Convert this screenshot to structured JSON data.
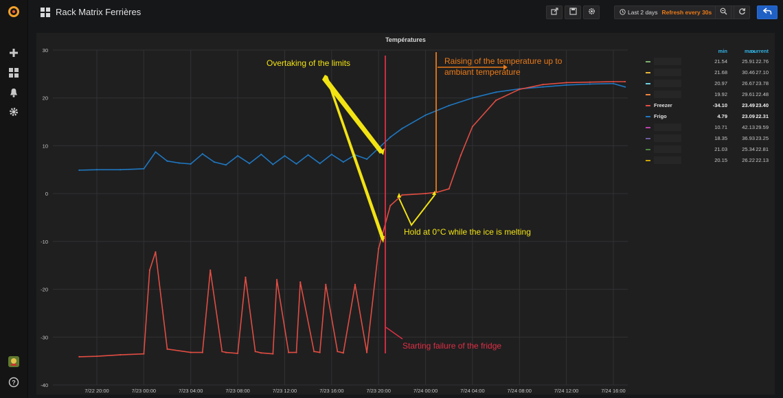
{
  "header": {
    "title": "Rack Matrix Ferrières"
  },
  "timepicker": {
    "range": "Last 2 days",
    "refresh": "Refresh every 30s"
  },
  "panel": {
    "title": "Températures"
  },
  "chart_data": {
    "type": "line",
    "title": "Températures",
    "xlabel": "",
    "ylabel": "",
    "ylim": [
      -40,
      30
    ],
    "y_ticks": [
      "30",
      "20",
      "10",
      "0",
      "-10",
      "-20",
      "-30",
      "-40"
    ],
    "x_ticks": [
      "7/22 20:00",
      "7/23 00:00",
      "7/23 04:00",
      "7/23 08:00",
      "7/23 12:00",
      "7/23 16:00",
      "7/23 20:00",
      "7/24 00:00",
      "7/24 04:00",
      "7/24 08:00",
      "7/24 12:00",
      "7/24 16:00"
    ],
    "grid": true,
    "legend_position": "right",
    "series": [
      {
        "name": "Frigo",
        "color": "#1f78c1",
        "x": [
          "7/22 18:30",
          "7/22 20:00",
          "7/22 22:00",
          "7/23 00:00",
          "7/23 01:00",
          "7/23 02:00",
          "7/23 03:00",
          "7/23 04:00",
          "7/23 05:00",
          "7/23 06:00",
          "7/23 07:00",
          "7/23 08:00",
          "7/23 09:00",
          "7/23 10:00",
          "7/23 11:00",
          "7/23 12:00",
          "7/23 13:00",
          "7/23 14:00",
          "7/23 15:00",
          "7/23 16:00",
          "7/23 17:00",
          "7/23 18:00",
          "7/23 19:00",
          "7/23 20:00",
          "7/23 21:00",
          "7/23 22:00",
          "7/24 00:00",
          "7/24 02:00",
          "7/24 04:00",
          "7/24 06:00",
          "7/24 08:00",
          "7/24 10:00",
          "7/24 12:00",
          "7/24 14:00",
          "7/24 16:00",
          "7/24 17:00"
        ],
        "y": [
          4.9,
          5.0,
          5.0,
          5.2,
          8.7,
          6.8,
          6.4,
          6.2,
          8.3,
          6.6,
          6.0,
          7.9,
          6.3,
          8.2,
          6.1,
          7.9,
          6.2,
          8.1,
          6.3,
          8.2,
          6.6,
          8.1,
          7.2,
          9.5,
          11.8,
          13.6,
          16.4,
          18.4,
          20.0,
          21.2,
          21.9,
          22.3,
          22.7,
          22.9,
          23.0,
          22.3
        ]
      },
      {
        "name": "Freezer",
        "color": "#e24d42",
        "x": [
          "7/22 18:30",
          "7/22 20:00",
          "7/22 22:00",
          "7/23 00:00",
          "7/23 00:30",
          "7/23 01:00",
          "7/23 02:00",
          "7/23 04:00",
          "7/23 05:00",
          "7/23 05:40",
          "7/23 06:40",
          "7/23 07:00",
          "7/23 08:00",
          "7/23 08:40",
          "7/23 09:30",
          "7/23 10:00",
          "7/23 11:00",
          "7/23 11:20",
          "7/23 12:20",
          "7/23 13:00",
          "7/23 13:20",
          "7/23 14:30",
          "7/23 15:00",
          "7/23 15:30",
          "7/23 16:30",
          "7/23 17:00",
          "7/23 18:00",
          "7/23 19:00",
          "7/23 20:00",
          "7/23 21:00",
          "7/23 22:00",
          "7/24 00:00",
          "7/24 01:00",
          "7/24 02:00",
          "7/24 03:00",
          "7/24 04:00",
          "7/24 06:00",
          "7/24 08:00",
          "7/24 10:00",
          "7/24 12:00",
          "7/24 14:00",
          "7/24 16:00",
          "7/24 17:00"
        ],
        "y": [
          -34.1,
          -34.0,
          -33.7,
          -33.5,
          -16.0,
          -12.2,
          -32.5,
          -33.2,
          -33.2,
          -16.0,
          -33.0,
          -33.2,
          -33.4,
          -17.5,
          -33.0,
          -33.3,
          -33.5,
          -18.0,
          -33.2,
          -33.2,
          -18.5,
          -33.0,
          -33.2,
          -19.0,
          -33.0,
          -33.3,
          -19.0,
          -33.2,
          -11.5,
          -2.5,
          -0.3,
          0.0,
          0.3,
          1.0,
          8.0,
          14.0,
          19.5,
          21.8,
          22.8,
          23.2,
          23.3,
          23.4,
          23.4
        ]
      }
    ],
    "annotations": [
      {
        "text": "Overtaking of the limits",
        "color": "#f2e313"
      },
      {
        "text": "Raising of the temperature up to",
        "text2": "ambiant temperature",
        "color": "#eb7b18"
      },
      {
        "text": "Hold at 0°C while the ice is melting",
        "color": "#f2e313"
      },
      {
        "text": "Starting failure of the fridge",
        "color": "#e02f44"
      }
    ]
  },
  "legend": {
    "headers": {
      "min": "min",
      "max": "max",
      "current": "current"
    },
    "rows": [
      {
        "name": "",
        "color": "#7eb26d",
        "min": "21.54",
        "max": "25.91",
        "current": "22.76"
      },
      {
        "name": "",
        "color": "#eab839",
        "min": "21.68",
        "max": "30.46",
        "current": "27.10"
      },
      {
        "name": "",
        "color": "#6ed0e0",
        "min": "20.97",
        "max": "26.67",
        "current": "23.78"
      },
      {
        "name": "",
        "color": "#ef843c",
        "min": "19.92",
        "max": "29.61",
        "current": "22.48"
      },
      {
        "name": "Freezer",
        "color": "#e24d42",
        "min": "-34.10",
        "max": "23.49",
        "current": "23.40"
      },
      {
        "name": "Frigo",
        "color": "#1f78c1",
        "min": "4.79",
        "max": "23.09",
        "current": "22.31"
      },
      {
        "name": "",
        "color": "#ba43a9",
        "min": "10.71",
        "max": "42.13",
        "current": "29.59"
      },
      {
        "name": "",
        "color": "#705da0",
        "min": "18.35",
        "max": "36.93",
        "current": "23.25"
      },
      {
        "name": "",
        "color": "#508642",
        "min": "21.03",
        "max": "25.34",
        "current": "22.81"
      },
      {
        "name": "",
        "color": "#cca300",
        "min": "20.15",
        "max": "26.22",
        "current": "22.13"
      }
    ]
  }
}
